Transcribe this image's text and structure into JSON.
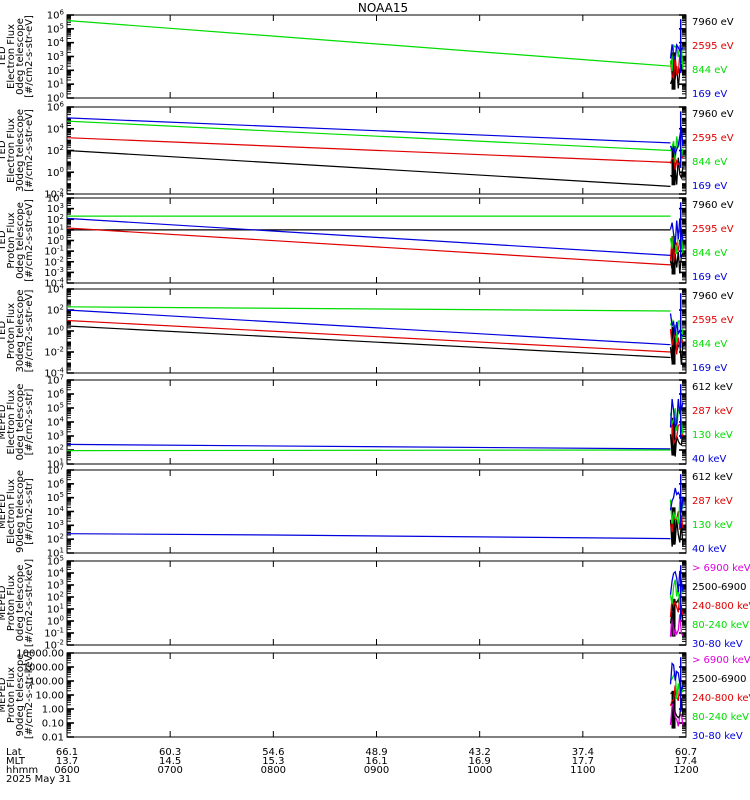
{
  "title": "NOAA15",
  "footer": {
    "row_labels": [
      "Lat",
      "MLT",
      "hhmm"
    ],
    "date": "2025 May 31",
    "ticks": [
      {
        "lat": "66.1",
        "mlt": "13.7",
        "hhmm": "0600"
      },
      {
        "lat": "60.3",
        "mlt": "14.5",
        "hhmm": "0700"
      },
      {
        "lat": "54.6",
        "mlt": "15.3",
        "hhmm": "0800"
      },
      {
        "lat": "48.9",
        "mlt": "16.1",
        "hhmm": "0900"
      },
      {
        "lat": "43.2",
        "mlt": "16.9",
        "hhmm": "1000"
      },
      {
        "lat": "37.4",
        "mlt": "17.7",
        "hhmm": "1100"
      },
      {
        "lat": "60.7",
        "mlt": "17.4",
        "hhmm": "1200"
      }
    ]
  },
  "colors": {
    "black": "#000000",
    "red": "#e00000",
    "green": "#00dd00",
    "blue": "#0000dd",
    "magenta": "#dd00dd"
  },
  "chart_data": [
    {
      "type": "line",
      "ylabel": [
        "TED",
        "Electron Flux",
        "0deg telescope",
        "[#/cm2-s-str-eV]"
      ],
      "yscale": "log",
      "ylim": [
        1,
        1000000
      ],
      "ytick_labels": [
        "10^0",
        "10^1",
        "10^2",
        "10^3",
        "10^4",
        "10^5",
        "10^6"
      ],
      "legend": [
        {
          "label": "7960 eV",
          "color": "black"
        },
        {
          "label": "2595 eV",
          "color": "red"
        },
        {
          "label": "844 eV",
          "color": "green"
        },
        {
          "label": "169 eV",
          "color": "blue"
        }
      ],
      "series": [
        {
          "color": "green",
          "x": [
            6.0,
            11.85
          ],
          "y": [
            400000,
            200
          ]
        }
      ]
    },
    {
      "type": "line",
      "ylabel": [
        "TED",
        "Electron Flux",
        "30deg telescope",
        "[#/cm2-s-str-eV]"
      ],
      "yscale": "log",
      "ylim": [
        0.01,
        1000000
      ],
      "ytick_labels": [
        "10^-2",
        "10^0",
        "10^2",
        "10^4",
        "10^6"
      ],
      "legend": [
        {
          "label": "7960 eV",
          "color": "black"
        },
        {
          "label": "2595 eV",
          "color": "red"
        },
        {
          "label": "844 eV",
          "color": "green"
        },
        {
          "label": "169 eV",
          "color": "blue"
        }
      ],
      "series": [
        {
          "color": "blue",
          "x": [
            6.0,
            11.85
          ],
          "y": [
            100000,
            500
          ]
        },
        {
          "color": "green",
          "x": [
            6.0,
            11.85
          ],
          "y": [
            50000,
            100
          ]
        },
        {
          "color": "red",
          "x": [
            6.0,
            11.85
          ],
          "y": [
            1500,
            8
          ]
        },
        {
          "color": "black",
          "x": [
            6.0,
            11.85
          ],
          "y": [
            100,
            0.05
          ]
        }
      ]
    },
    {
      "type": "line",
      "ylabel": [
        "TED",
        "Proton Flux",
        "0deg telescope",
        "[#/cm2-s-str-eV]"
      ],
      "yscale": "log",
      "ylim": [
        0.0001,
        10000
      ],
      "ytick_labels": [
        "10^-4",
        "10^-3",
        "10^-2",
        "10^-1",
        "10^0",
        "10^1",
        "10^2",
        "10^3",
        "10^4"
      ],
      "legend": [
        {
          "label": "7960 eV",
          "color": "black"
        },
        {
          "label": "2595 eV",
          "color": "red"
        },
        {
          "label": "844 eV",
          "color": "green"
        },
        {
          "label": "169 eV",
          "color": "blue"
        }
      ],
      "series": [
        {
          "color": "green",
          "x": [
            6.0,
            11.85
          ],
          "y": [
            200,
            200
          ]
        },
        {
          "color": "black",
          "x": [
            6.0,
            11.85
          ],
          "y": [
            10,
            10
          ]
        },
        {
          "color": "blue",
          "x": [
            6.0,
            11.85
          ],
          "y": [
            120,
            0.04
          ]
        },
        {
          "color": "red",
          "x": [
            6.0,
            11.85
          ],
          "y": [
            15,
            0.005
          ]
        }
      ]
    },
    {
      "type": "line",
      "ylabel": [
        "TED",
        "Proton Flux",
        "30deg telescope",
        "[#/cm2-s-str-eV]"
      ],
      "yscale": "log",
      "ylim": [
        0.0001,
        10000
      ],
      "ytick_labels": [
        "10^-4",
        "10^-2",
        "10^0",
        "10^2",
        "10^4"
      ],
      "legend": [
        {
          "label": "7960 eV",
          "color": "black"
        },
        {
          "label": "2595 eV",
          "color": "red"
        },
        {
          "label": "844 eV",
          "color": "green"
        },
        {
          "label": "169 eV",
          "color": "blue"
        }
      ],
      "series": [
        {
          "color": "green",
          "x": [
            6.0,
            11.85
          ],
          "y": [
            200,
            80
          ]
        },
        {
          "color": "blue",
          "x": [
            6.0,
            11.85
          ],
          "y": [
            100,
            0.05
          ]
        },
        {
          "color": "red",
          "x": [
            6.0,
            11.85
          ],
          "y": [
            10,
            0.01
          ]
        },
        {
          "color": "black",
          "x": [
            6.0,
            11.85
          ],
          "y": [
            3,
            0.003
          ]
        }
      ]
    },
    {
      "type": "line",
      "ylabel": [
        "MEPED",
        "Electron Flux",
        "0deg telescope",
        "[#/cm2-s-str]"
      ],
      "yscale": "log",
      "ylim": [
        10,
        10000000
      ],
      "ytick_labels": [
        "10^1",
        "10^2",
        "10^3",
        "10^4",
        "10^5",
        "10^6",
        "10^7"
      ],
      "legend": [
        {
          "label": "612 keV",
          "color": "black"
        },
        {
          "label": "287 keV",
          "color": "red"
        },
        {
          "label": "130 keV",
          "color": "green"
        },
        {
          "label": "40 keV",
          "color": "blue"
        }
      ],
      "series": [
        {
          "color": "blue",
          "x": [
            6.0,
            11.85
          ],
          "y": [
            250,
            120
          ]
        },
        {
          "color": "green",
          "x": [
            6.0,
            11.85
          ],
          "y": [
            90,
            100
          ]
        }
      ]
    },
    {
      "type": "line",
      "ylabel": [
        "MEPED",
        "Electron Flux",
        "90deg telescope",
        "[#/cm2-s-str]"
      ],
      "yscale": "log",
      "ylim": [
        10,
        10000000
      ],
      "ytick_labels": [
        "10^1",
        "10^2",
        "10^3",
        "10^4",
        "10^5",
        "10^6",
        "10^7"
      ],
      "legend": [
        {
          "label": "612 keV",
          "color": "black"
        },
        {
          "label": "287 keV",
          "color": "red"
        },
        {
          "label": "130 keV",
          "color": "green"
        },
        {
          "label": "40 keV",
          "color": "blue"
        }
      ],
      "series": [
        {
          "color": "blue",
          "x": [
            6.0,
            8.0,
            11.85
          ],
          "y": [
            250,
            200,
            110
          ]
        }
      ]
    },
    {
      "type": "line",
      "ylabel": [
        "MEPED",
        "Proton Flux",
        "0deg telescope",
        "[#/cm2-s-str-keV]"
      ],
      "yscale": "log",
      "ylim": [
        0.01,
        100000
      ],
      "ytick_labels": [
        "10^-2",
        "10^-1",
        "10^0",
        "10^1",
        "10^2",
        "10^3",
        "10^4",
        "10^5"
      ],
      "legend": [
        {
          "label": "> 6900 keV",
          "color": "magenta"
        },
        {
          "label": "2500-6900",
          "color": "black"
        },
        {
          "label": "240-800 keV",
          "color": "red"
        },
        {
          "label": "80-240 keV",
          "color": "green"
        },
        {
          "label": "30-80 keV",
          "color": "blue"
        }
      ],
      "series": []
    },
    {
      "type": "line",
      "ylabel": [
        "MEPED",
        "Proton Flux",
        "90deg telescope",
        "[#/cm2-s-str-keV]"
      ],
      "yscale": "log",
      "ylim": [
        0.01,
        10000
      ],
      "ytick_labels": [
        "0.01",
        "0.10",
        "1.00",
        "10.00",
        "100.00",
        "1000.00",
        "10000.00"
      ],
      "legend": [
        {
          "label": "> 6900 keV",
          "color": "magenta"
        },
        {
          "label": "2500-6900",
          "color": "black"
        },
        {
          "label": "240-800 keV",
          "color": "red"
        },
        {
          "label": "80-240 keV",
          "color": "green"
        },
        {
          "label": "30-80 keV",
          "color": "blue"
        }
      ],
      "series": []
    }
  ]
}
